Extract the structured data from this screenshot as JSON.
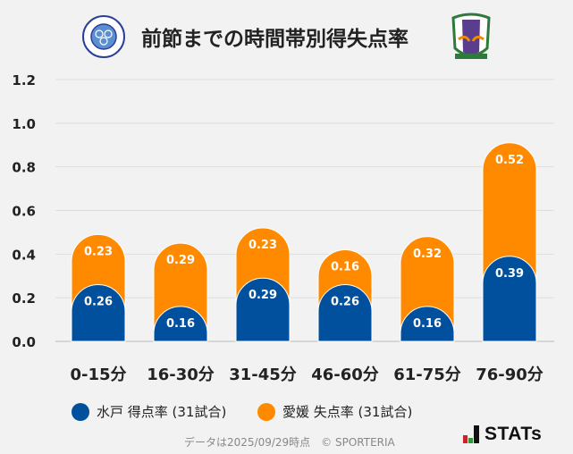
{
  "title": "前節までの時間帯別得失点率",
  "chart_data": {
    "type": "bar",
    "stacked": true,
    "categories": [
      "0-15分",
      "16-30分",
      "31-45分",
      "46-60分",
      "61-75分",
      "76-90分"
    ],
    "series": [
      {
        "name": "水戸 得点率 (31試合)",
        "color": "#00509e",
        "values": [
          0.26,
          0.16,
          0.29,
          0.26,
          0.16,
          0.39
        ]
      },
      {
        "name": "愛媛 失点率 (31試合)",
        "color": "#ff8a00",
        "values": [
          0.23,
          0.29,
          0.23,
          0.16,
          0.32,
          0.52
        ]
      }
    ],
    "ylim": [
      0,
      1.2
    ],
    "yticks": [
      "0.0",
      "0.2",
      "0.4",
      "0.6",
      "0.8",
      "1.0",
      "1.2"
    ],
    "grid": true,
    "legend_position": "bottom"
  },
  "legend": [
    "水戸 得点率 (31試合)",
    "愛媛 失点率 (31試合)"
  ],
  "footer": "データは2025/09/29時点　© SPORTERIA",
  "brand": "STATs",
  "logos": {
    "left": "Mito HollyHock crest",
    "right": "Ehime FC crest"
  }
}
